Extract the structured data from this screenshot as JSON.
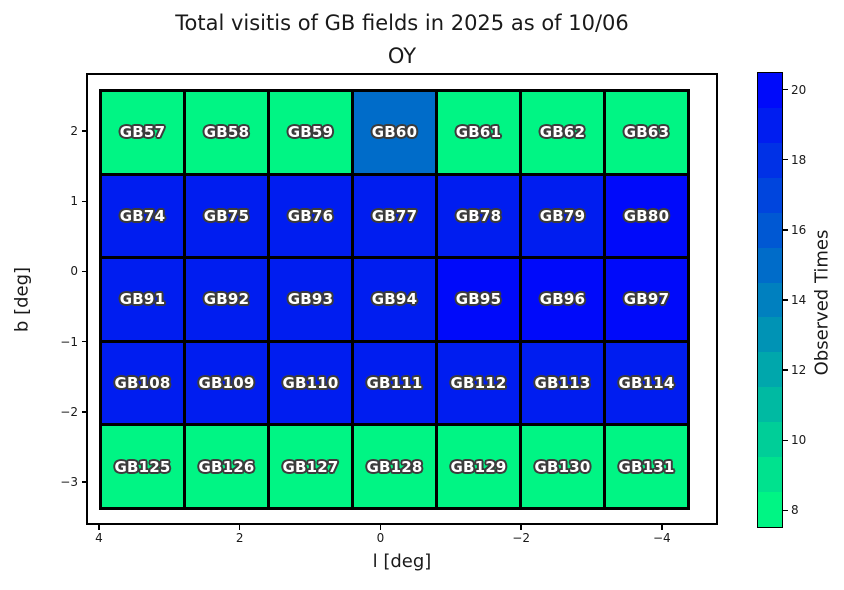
{
  "chart_data": {
    "type": "heatmap",
    "title": "Total visitis of GB fields in 2025 as of 10/06 OY",
    "title_lines": [
      "Total visitis of GB fields in 2025 as of 10/06",
      "OY"
    ],
    "xlabel": "l [deg]",
    "ylabel": "b [deg]",
    "colorbar_label": "Observed Times",
    "colormap": "winter_r",
    "vmin": 7.5,
    "vmax": 20.5,
    "x_tick_values": [
      4,
      2,
      0,
      -2,
      -4
    ],
    "x_tick_labels": [
      "4",
      "2",
      "0",
      "−2",
      "−4"
    ],
    "y_tick_values": [
      2,
      1,
      0,
      -1,
      -2,
      -3
    ],
    "y_tick_labels": [
      "2",
      "1",
      "0",
      "−1",
      "−2",
      "−3"
    ],
    "colorbar_tick_values": [
      20,
      18,
      16,
      14,
      12,
      10,
      8
    ],
    "x_centers": [
      3.4,
      2.2,
      1.0,
      -0.2,
      -1.4,
      -2.6,
      -3.8
    ],
    "y_centers": [
      2.0,
      0.8,
      -0.4,
      -1.6,
      -2.8
    ],
    "rows": [
      [
        {
          "label": "GB57",
          "value": 8
        },
        {
          "label": "GB58",
          "value": 8
        },
        {
          "label": "GB59",
          "value": 8
        },
        {
          "label": "GB60",
          "value": 15
        },
        {
          "label": "GB61",
          "value": 8
        },
        {
          "label": "GB62",
          "value": 8
        },
        {
          "label": "GB63",
          "value": 8
        }
      ],
      [
        {
          "label": "GB74",
          "value": 19
        },
        {
          "label": "GB75",
          "value": 19
        },
        {
          "label": "GB76",
          "value": 19
        },
        {
          "label": "GB77",
          "value": 19
        },
        {
          "label": "GB78",
          "value": 19
        },
        {
          "label": "GB79",
          "value": 19
        },
        {
          "label": "GB80",
          "value": 20
        }
      ],
      [
        {
          "label": "GB91",
          "value": 19
        },
        {
          "label": "GB92",
          "value": 19
        },
        {
          "label": "GB93",
          "value": 19
        },
        {
          "label": "GB94",
          "value": 19
        },
        {
          "label": "GB95",
          "value": 20
        },
        {
          "label": "GB96",
          "value": 20
        },
        {
          "label": "GB97",
          "value": 20
        }
      ],
      [
        {
          "label": "GB108",
          "value": 19
        },
        {
          "label": "GB109",
          "value": 19
        },
        {
          "label": "GB110",
          "value": 19
        },
        {
          "label": "GB111",
          "value": 19
        },
        {
          "label": "GB112",
          "value": 19
        },
        {
          "label": "GB113",
          "value": 19
        },
        {
          "label": "GB114",
          "value": 19
        }
      ],
      [
        {
          "label": "GB125",
          "value": 8
        },
        {
          "label": "GB126",
          "value": 8
        },
        {
          "label": "GB127",
          "value": 8
        },
        {
          "label": "GB128",
          "value": 8
        },
        {
          "label": "GB129",
          "value": 8
        },
        {
          "label": "GB130",
          "value": 8
        },
        {
          "label": "GB131",
          "value": 8
        }
      ]
    ],
    "colors": {
      "cell_text": "#ffffff",
      "cell_text_outline": "#3c3c3c",
      "grid_line": "#000000",
      "low_value_color": "#00f584",
      "high_value_color": "#000afa"
    }
  }
}
